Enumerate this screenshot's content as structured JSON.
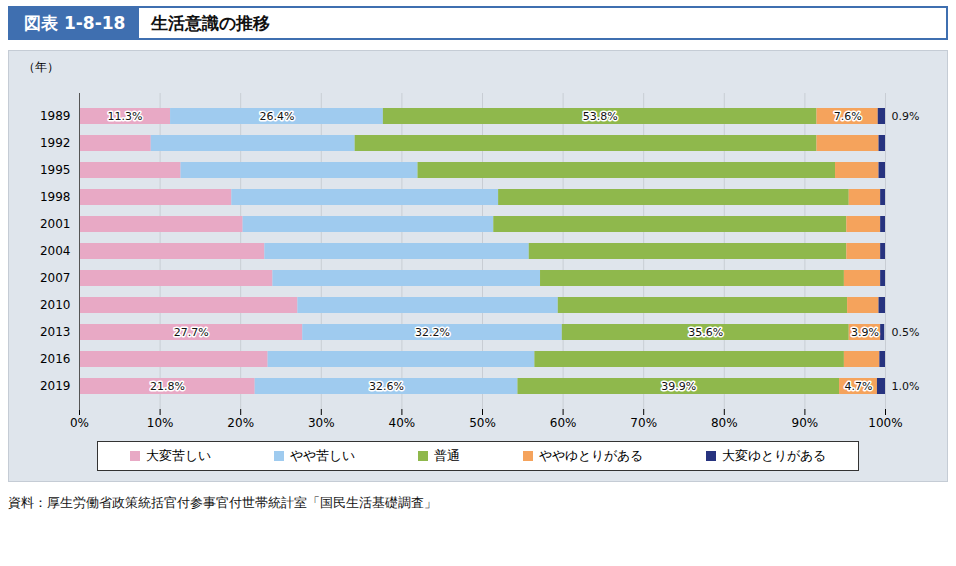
{
  "chart_data": {
    "type": "bar",
    "orientation": "horizontal",
    "stacked": true,
    "figure_label": "図表 1-8-18",
    "title": "生活意識の推移",
    "y_label": "（年）",
    "source": "資料：厚生労働省政策統括官付参事官付世帯統計室「国民生活基礎調査」",
    "categories": [
      "1989",
      "1992",
      "1995",
      "1998",
      "2001",
      "2004",
      "2007",
      "2010",
      "2013",
      "2016",
      "2019"
    ],
    "xlim": [
      0,
      100
    ],
    "xticks": [
      {
        "value": 0,
        "label": "0%"
      },
      {
        "value": 10,
        "label": "10%"
      },
      {
        "value": 20,
        "label": "20%"
      },
      {
        "value": 30,
        "label": "30%"
      },
      {
        "value": 40,
        "label": "40%"
      },
      {
        "value": 50,
        "label": "50%"
      },
      {
        "value": 60,
        "label": "60%"
      },
      {
        "value": 70,
        "label": "70%"
      },
      {
        "value": 80,
        "label": "80%"
      },
      {
        "value": 90,
        "label": "90%"
      },
      {
        "value": 100,
        "label": "100%"
      }
    ],
    "grid": true,
    "legend": "bottom",
    "data_labels": true,
    "series": [
      {
        "name": "大変苦しい",
        "color": "#e8a9c5",
        "values": [
          11.3,
          8.9,
          12.6,
          18.9,
          20.3,
          23.0,
          24.0,
          27.1,
          27.7,
          23.4,
          21.8
        ],
        "value_labels": [
          "11.3%",
          null,
          null,
          null,
          null,
          null,
          null,
          null,
          "27.7%",
          null,
          "21.8%"
        ]
      },
      {
        "name": "やや苦しい",
        "color": "#9fcbef",
        "values": [
          26.4,
          25.3,
          29.4,
          33.1,
          31.1,
          32.8,
          33.2,
          32.3,
          32.2,
          33.1,
          32.6
        ],
        "value_labels": [
          "26.4%",
          null,
          null,
          null,
          null,
          null,
          null,
          null,
          "32.2%",
          null,
          "32.6%"
        ]
      },
      {
        "name": "普通",
        "color": "#8fb84c",
        "values": [
          53.8,
          57.3,
          51.8,
          43.5,
          43.8,
          39.4,
          37.7,
          35.9,
          35.6,
          38.4,
          39.9
        ],
        "value_labels": [
          "53.8%",
          null,
          null,
          null,
          null,
          null,
          null,
          null,
          "35.6%",
          null,
          "39.9%"
        ]
      },
      {
        "name": "ややゆとりがある",
        "color": "#f5a35c",
        "values": [
          7.6,
          7.7,
          5.4,
          3.9,
          4.2,
          4.2,
          4.5,
          3.9,
          3.9,
          4.4,
          4.7
        ],
        "value_labels": [
          "7.6%",
          null,
          null,
          null,
          null,
          null,
          null,
          null,
          "3.9%",
          null,
          "4.7%"
        ]
      },
      {
        "name": "大変ゆとりがある",
        "color": "#27337f",
        "values": [
          0.9,
          0.8,
          0.8,
          0.6,
          0.6,
          0.6,
          0.6,
          0.8,
          0.5,
          0.7,
          1.0
        ],
        "value_labels": [
          "0.9%",
          null,
          null,
          null,
          null,
          null,
          null,
          null,
          "0.5%",
          null,
          "1.0%"
        ]
      }
    ]
  }
}
